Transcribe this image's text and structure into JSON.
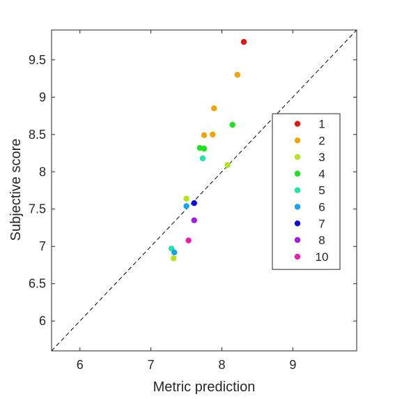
{
  "chart_data": {
    "type": "scatter",
    "title": "",
    "xlabel": "Metric prediction",
    "ylabel": "Subjective score",
    "xlim": [
      5.6,
      9.9
    ],
    "ylim": [
      5.6,
      9.9
    ],
    "xticks": [
      6,
      7,
      8,
      9
    ],
    "yticks": [
      6,
      6.5,
      7,
      7.5,
      8,
      8.5,
      9,
      9.5
    ],
    "xtick_labels": [
      "6",
      "7",
      "8",
      "9"
    ],
    "ytick_labels": [
      "6",
      "6.5",
      "7",
      "7.5",
      "8",
      "8.5",
      "9",
      "9.5"
    ],
    "grid": false,
    "reference_line": "y = x (dashed)",
    "legend_placement": "right",
    "series": [
      {
        "name": "1",
        "color": "#e81414",
        "points": [
          [
            8.31,
            9.74
          ]
        ]
      },
      {
        "name": "2",
        "color": "#f5a300",
        "points": [
          [
            8.22,
            9.3
          ],
          [
            7.89,
            8.85
          ],
          [
            7.75,
            8.49
          ],
          [
            7.87,
            8.5
          ]
        ]
      },
      {
        "name": "3",
        "color": "#b3e619",
        "points": [
          [
            8.08,
            8.09
          ],
          [
            7.5,
            7.64
          ],
          [
            7.32,
            6.84
          ]
        ]
      },
      {
        "name": "4",
        "color": "#19e619",
        "points": [
          [
            8.15,
            8.63
          ],
          [
            7.69,
            8.32
          ],
          [
            7.75,
            8.31
          ]
        ]
      },
      {
        "name": "5",
        "color": "#19e6a8",
        "points": [
          [
            7.73,
            8.18
          ],
          [
            7.29,
            6.97
          ]
        ]
      },
      {
        "name": "6",
        "color": "#14a3f5",
        "points": [
          [
            7.5,
            7.54
          ],
          [
            7.33,
            6.92
          ]
        ]
      },
      {
        "name": "7",
        "color": "#0a0ae6",
        "points": [
          [
            7.61,
            7.58
          ]
        ]
      },
      {
        "name": "8",
        "color": "#a319e6",
        "points": [
          [
            7.61,
            7.35
          ]
        ]
      },
      {
        "name": "10",
        "color": "#f519a8",
        "points": [
          [
            7.53,
            7.08
          ]
        ]
      }
    ]
  }
}
